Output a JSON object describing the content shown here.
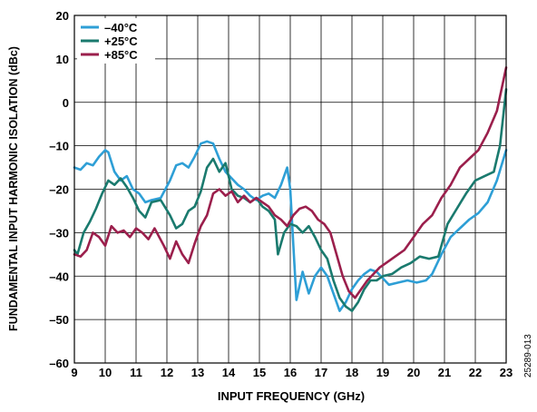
{
  "figure_id": "25289-013",
  "chart_data": {
    "type": "line",
    "title": "",
    "xlabel": "INPUT FREQUENCY (GHz)",
    "ylabel": "FUNDAMENTAL INPUT HARMONIC ISOLATION (dBc)",
    "xlim": [
      9,
      23
    ],
    "ylim": [
      -60,
      20
    ],
    "xticks": [
      9,
      10,
      11,
      12,
      13,
      14,
      15,
      16,
      17,
      18,
      19,
      20,
      21,
      22,
      23
    ],
    "yticks": [
      -60,
      -50,
      -40,
      -30,
      -20,
      -10,
      0,
      10,
      20
    ],
    "xtick_labels": [
      "9",
      "10",
      "11",
      "12",
      "13",
      "14",
      "15",
      "16",
      "17",
      "18",
      "19",
      "20",
      "21",
      "22",
      "23"
    ],
    "ytick_labels": [
      "–60",
      "–50",
      "–40",
      "–30",
      "–20",
      "–10",
      "0",
      "10",
      "20"
    ],
    "grid": true,
    "legend_position": "top-left",
    "series": [
      {
        "name": "–40°C",
        "color": "#2e9fd6",
        "x": [
          9.0,
          9.2,
          9.4,
          9.6,
          9.8,
          10.0,
          10.1,
          10.3,
          10.5,
          10.7,
          10.9,
          11.1,
          11.3,
          11.5,
          11.8,
          12.1,
          12.3,
          12.5,
          12.7,
          12.9,
          13.1,
          13.3,
          13.5,
          13.7,
          13.9,
          14.1,
          14.3,
          14.5,
          14.7,
          14.9,
          15.1,
          15.3,
          15.5,
          15.7,
          15.9,
          16.0,
          16.1,
          16.2,
          16.4,
          16.6,
          16.8,
          17.0,
          17.2,
          17.4,
          17.6,
          17.8,
          18.0,
          18.2,
          18.4,
          18.6,
          18.8,
          19.0,
          19.2,
          19.5,
          19.8,
          20.1,
          20.4,
          20.6,
          20.9,
          21.2,
          21.5,
          21.8,
          22.1,
          22.4,
          22.7,
          23.0
        ],
        "y": [
          -15.0,
          -15.5,
          -14.0,
          -14.5,
          -12.5,
          -11.0,
          -11.5,
          -16.0,
          -18.0,
          -17.0,
          -20.0,
          -21.0,
          -23.0,
          -22.5,
          -22.0,
          -18.0,
          -14.5,
          -14.0,
          -15.0,
          -12.5,
          -9.5,
          -9.0,
          -9.5,
          -13.0,
          -16.0,
          -17.5,
          -19.0,
          -20.0,
          -21.5,
          -22.5,
          -21.5,
          -21.0,
          -22.0,
          -19.0,
          -15.0,
          -20.0,
          -33.0,
          -45.5,
          -39.0,
          -44.0,
          -40.0,
          -38.0,
          -40.0,
          -44.0,
          -48.0,
          -46.0,
          -43.0,
          -41.0,
          -39.5,
          -38.5,
          -39.0,
          -40.5,
          -42.0,
          -41.5,
          -41.0,
          -41.5,
          -41.0,
          -39.5,
          -35.0,
          -31.0,
          -29.0,
          -27.0,
          -25.5,
          -23.0,
          -18.0,
          -11.0
        ]
      },
      {
        "name": "+25°C",
        "color": "#1a7a6e",
        "x": [
          9.0,
          9.1,
          9.3,
          9.5,
          9.7,
          9.9,
          10.1,
          10.3,
          10.5,
          10.7,
          10.9,
          11.1,
          11.3,
          11.5,
          11.8,
          12.1,
          12.3,
          12.5,
          12.7,
          12.9,
          13.1,
          13.3,
          13.5,
          13.7,
          13.9,
          14.1,
          14.3,
          14.5,
          14.7,
          14.9,
          15.1,
          15.3,
          15.5,
          15.6,
          15.8,
          16.0,
          16.2,
          16.4,
          16.6,
          16.8,
          17.0,
          17.2,
          17.4,
          17.6,
          17.8,
          18.0,
          18.2,
          18.4,
          18.6,
          18.8,
          19.0,
          19.3,
          19.6,
          19.9,
          20.2,
          20.5,
          20.8,
          21.1,
          21.4,
          21.7,
          22.0,
          22.3,
          22.6,
          22.8,
          23.0
        ],
        "y": [
          -34.0,
          -35.0,
          -30.0,
          -27.5,
          -24.5,
          -21.0,
          -18.0,
          -19.0,
          -17.5,
          -19.5,
          -22.0,
          -25.0,
          -26.5,
          -23.0,
          -22.5,
          -26.0,
          -29.0,
          -28.0,
          -25.0,
          -24.0,
          -20.5,
          -15.0,
          -13.0,
          -16.0,
          -14.0,
          -20.0,
          -21.5,
          -22.0,
          -23.0,
          -22.0,
          -24.0,
          -25.0,
          -27.0,
          -35.0,
          -30.0,
          -28.0,
          -28.5,
          -30.0,
          -28.5,
          -31.0,
          -34.0,
          -36.0,
          -41.0,
          -45.0,
          -47.0,
          -48.0,
          -46.0,
          -43.0,
          -41.0,
          -41.0,
          -40.0,
          -39.5,
          -38.0,
          -37.0,
          -35.5,
          -36.0,
          -35.5,
          -28.0,
          -24.5,
          -21.0,
          -18.0,
          -17.0,
          -16.0,
          -10.0,
          3.0
        ]
      },
      {
        "name": "+85°C",
        "color": "#9b1f4c",
        "x": [
          9.0,
          9.2,
          9.4,
          9.6,
          9.8,
          10.0,
          10.2,
          10.4,
          10.6,
          10.8,
          11.0,
          11.2,
          11.4,
          11.6,
          11.9,
          12.1,
          12.3,
          12.5,
          12.7,
          12.9,
          13.1,
          13.3,
          13.5,
          13.7,
          13.9,
          14.1,
          14.3,
          14.5,
          14.7,
          14.9,
          15.1,
          15.3,
          15.5,
          15.7,
          15.9,
          16.1,
          16.3,
          16.5,
          16.7,
          16.9,
          17.1,
          17.3,
          17.5,
          17.7,
          17.9,
          18.1,
          18.3,
          18.5,
          18.7,
          18.9,
          19.1,
          19.4,
          19.7,
          20.0,
          20.3,
          20.6,
          20.9,
          21.2,
          21.5,
          21.8,
          22.1,
          22.4,
          22.7,
          23.0
        ],
        "y": [
          -35.0,
          -35.5,
          -34.0,
          -30.0,
          -31.0,
          -33.0,
          -28.5,
          -30.0,
          -29.5,
          -31.0,
          -29.0,
          -30.0,
          -31.5,
          -29.0,
          -33.0,
          -36.0,
          -32.0,
          -35.0,
          -37.0,
          -32.5,
          -28.5,
          -26.0,
          -21.0,
          -20.0,
          -21.5,
          -20.5,
          -23.0,
          -21.5,
          -23.0,
          -22.0,
          -23.0,
          -24.0,
          -26.0,
          -27.0,
          -28.5,
          -26.0,
          -24.5,
          -24.0,
          -25.0,
          -27.0,
          -28.0,
          -30.0,
          -35.0,
          -40.0,
          -43.5,
          -45.0,
          -43.0,
          -41.0,
          -39.5,
          -38.0,
          -37.0,
          -35.5,
          -34.0,
          -31.0,
          -28.0,
          -26.0,
          -22.0,
          -19.0,
          -15.0,
          -13.0,
          -11.0,
          -7.0,
          -2.0,
          8.0
        ]
      }
    ]
  }
}
